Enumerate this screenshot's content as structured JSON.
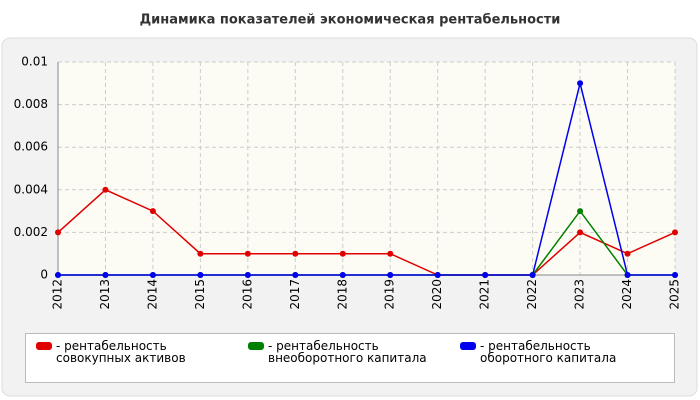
{
  "chart_data": {
    "type": "line",
    "title": "Динамика показателей экономическая рентабельности",
    "categories": [
      "2012",
      "2013",
      "2014",
      "2015",
      "2016",
      "2017",
      "2018",
      "2019",
      "2020",
      "2021",
      "2022",
      "2023",
      "2024",
      "2025"
    ],
    "series": [
      {
        "name": "- рентабельность совокупных активов",
        "color": "#e00000",
        "values": [
          0.002,
          0.004,
          0.003,
          0.001,
          0.001,
          0.001,
          0.001,
          0.001,
          0,
          0,
          0,
          0.002,
          0.001,
          0.002
        ]
      },
      {
        "name": "- рентабельность внеоборотного капитала",
        "color": "#008000",
        "values": [
          0,
          0,
          0,
          0,
          0,
          0,
          0,
          0,
          0,
          0,
          0,
          0.003,
          0,
          0
        ]
      },
      {
        "name": "- рентабельность оборотного капитала",
        "color": "#0000ee",
        "values": [
          0,
          0,
          0,
          0,
          0,
          0,
          0,
          0,
          0,
          0,
          0,
          0.009,
          0,
          0
        ]
      }
    ],
    "ylim": [
      0,
      0.01
    ],
    "yticks": [
      0,
      0.002,
      0.004,
      0.006,
      0.008,
      0.01
    ],
    "grid": true
  }
}
